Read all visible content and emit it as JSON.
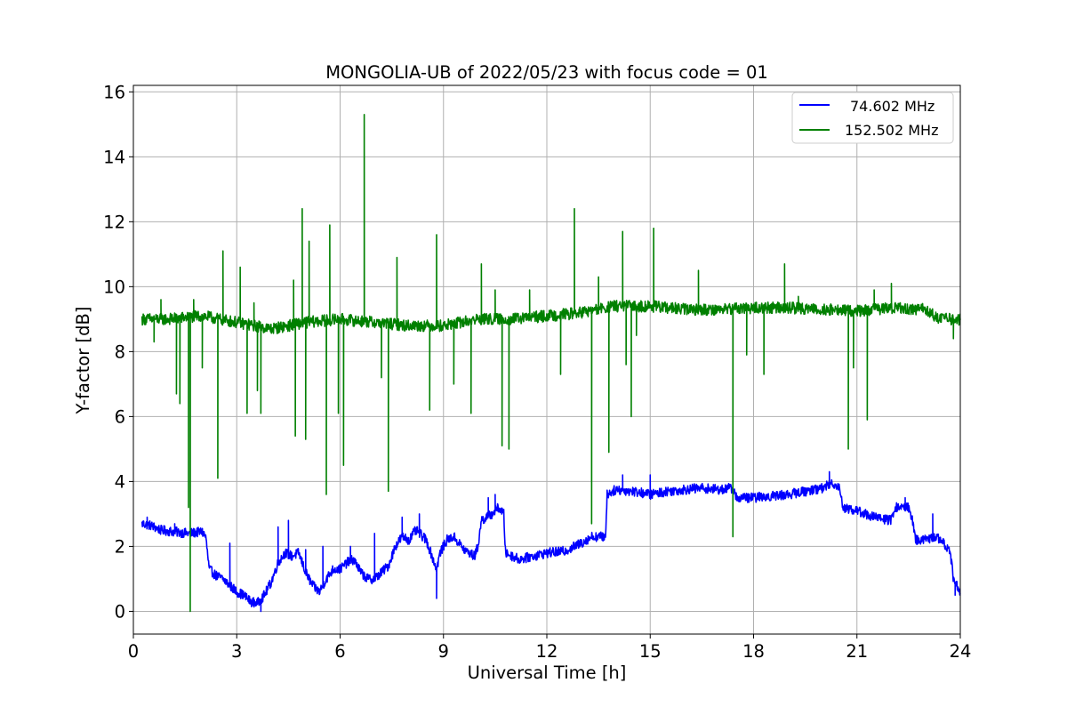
{
  "chart_data": {
    "type": "line",
    "title": "MONGOLIA-UB of 2022/05/23 with focus code = 01",
    "xlabel": "Universal Time [h]",
    "ylabel": "Y-factor [dB]",
    "xlim": [
      0,
      24
    ],
    "ylim": [
      -0.7,
      16.2
    ],
    "xticks": [
      0,
      3,
      6,
      9,
      12,
      15,
      18,
      21,
      24
    ],
    "xtick_labels": [
      "0",
      "3",
      "6",
      "9",
      "12",
      "15",
      "18",
      "21",
      "24"
    ],
    "yticks": [
      0,
      2,
      4,
      6,
      8,
      10,
      12,
      14,
      16
    ],
    "ytick_labels": [
      "0",
      "2",
      "4",
      "6",
      "8",
      "10",
      "12",
      "14",
      "16"
    ],
    "grid": true,
    "legend_position": "top-right",
    "series": [
      {
        "name": "74.602 MHz",
        "color": "#0000ff",
        "baseline": [
          [
            0.25,
            2.7
          ],
          [
            0.5,
            2.65
          ],
          [
            0.8,
            2.5
          ],
          [
            1.2,
            2.45
          ],
          [
            1.6,
            2.4
          ],
          [
            2.0,
            2.45
          ],
          [
            2.1,
            2.3
          ],
          [
            2.2,
            1.3
          ],
          [
            2.4,
            1.1
          ],
          [
            2.6,
            1.0
          ],
          [
            2.8,
            0.8
          ],
          [
            3.0,
            0.6
          ],
          [
            3.2,
            0.5
          ],
          [
            3.4,
            0.3
          ],
          [
            3.6,
            0.25
          ],
          [
            3.8,
            0.5
          ],
          [
            4.0,
            0.9
          ],
          [
            4.2,
            1.5
          ],
          [
            4.4,
            1.8
          ],
          [
            4.6,
            1.7
          ],
          [
            4.8,
            1.8
          ],
          [
            5.0,
            1.2
          ],
          [
            5.2,
            0.8
          ],
          [
            5.4,
            0.6
          ],
          [
            5.6,
            1.0
          ],
          [
            5.8,
            1.3
          ],
          [
            6.0,
            1.3
          ],
          [
            6.2,
            1.5
          ],
          [
            6.4,
            1.6
          ],
          [
            6.6,
            1.2
          ],
          [
            6.8,
            1.0
          ],
          [
            7.0,
            1.0
          ],
          [
            7.2,
            1.2
          ],
          [
            7.4,
            1.4
          ],
          [
            7.6,
            2.0
          ],
          [
            7.8,
            2.3
          ],
          [
            8.0,
            2.2
          ],
          [
            8.2,
            2.5
          ],
          [
            8.5,
            2.2
          ],
          [
            8.8,
            1.3
          ],
          [
            8.9,
            1.8
          ],
          [
            9.1,
            2.2
          ],
          [
            9.3,
            2.3
          ],
          [
            9.6,
            1.9
          ],
          [
            9.9,
            1.7
          ],
          [
            10.0,
            2.0
          ],
          [
            10.1,
            2.8
          ],
          [
            10.4,
            3.0
          ],
          [
            10.6,
            3.2
          ],
          [
            10.75,
            3.0
          ],
          [
            10.8,
            1.8
          ],
          [
            11.2,
            1.6
          ],
          [
            11.6,
            1.7
          ],
          [
            12.0,
            1.8
          ],
          [
            12.5,
            1.85
          ],
          [
            13.0,
            2.1
          ],
          [
            13.3,
            2.3
          ],
          [
            13.7,
            2.3
          ],
          [
            13.75,
            3.6
          ],
          [
            14.0,
            3.75
          ],
          [
            14.5,
            3.7
          ],
          [
            15.0,
            3.6
          ],
          [
            15.5,
            3.7
          ],
          [
            16.0,
            3.75
          ],
          [
            16.5,
            3.8
          ],
          [
            17.0,
            3.75
          ],
          [
            17.4,
            3.8
          ],
          [
            17.5,
            3.5
          ],
          [
            18.0,
            3.5
          ],
          [
            18.5,
            3.55
          ],
          [
            19.0,
            3.6
          ],
          [
            19.5,
            3.7
          ],
          [
            20.0,
            3.8
          ],
          [
            20.3,
            3.95
          ],
          [
            20.5,
            3.8
          ],
          [
            20.6,
            3.2
          ],
          [
            21.0,
            3.1
          ],
          [
            21.5,
            2.9
          ],
          [
            22.0,
            2.8
          ],
          [
            22.1,
            3.2
          ],
          [
            22.5,
            3.2
          ],
          [
            22.6,
            2.9
          ],
          [
            22.7,
            2.2
          ],
          [
            23.0,
            2.2
          ],
          [
            23.3,
            2.3
          ],
          [
            23.5,
            2.1
          ],
          [
            23.7,
            1.9
          ],
          [
            23.8,
            1.0
          ],
          [
            24.0,
            0.6
          ]
        ],
        "noise_amplitude": 0.15,
        "spikes": [
          [
            0.4,
            2.9
          ],
          [
            1.2,
            2.7
          ],
          [
            2.8,
            2.1
          ],
          [
            3.7,
            0.0
          ],
          [
            4.2,
            2.6
          ],
          [
            4.5,
            2.8
          ],
          [
            5.0,
            1.9
          ],
          [
            5.5,
            2.0
          ],
          [
            6.3,
            2.0
          ],
          [
            7.0,
            2.4
          ],
          [
            7.8,
            2.9
          ],
          [
            8.3,
            3.0
          ],
          [
            8.8,
            0.4
          ],
          [
            10.3,
            3.5
          ],
          [
            10.5,
            3.6
          ],
          [
            14.2,
            4.2
          ],
          [
            15.0,
            4.2
          ],
          [
            20.2,
            4.3
          ],
          [
            22.4,
            3.5
          ],
          [
            23.2,
            3.0
          ],
          [
            23.85,
            0.5
          ]
        ]
      },
      {
        "name": "152.502 MHz",
        "color": "#008000",
        "baseline": [
          [
            0.25,
            9.0
          ],
          [
            1.0,
            9.0
          ],
          [
            2.0,
            9.1
          ],
          [
            3.0,
            8.9
          ],
          [
            4.0,
            8.7
          ],
          [
            5.0,
            8.9
          ],
          [
            6.0,
            9.0
          ],
          [
            7.0,
            8.9
          ],
          [
            8.0,
            8.8
          ],
          [
            9.0,
            8.8
          ],
          [
            10.0,
            9.0
          ],
          [
            11.0,
            9.0
          ],
          [
            12.0,
            9.1
          ],
          [
            13.0,
            9.2
          ],
          [
            14.0,
            9.4
          ],
          [
            15.0,
            9.4
          ],
          [
            16.0,
            9.3
          ],
          [
            17.0,
            9.3
          ],
          [
            18.0,
            9.35
          ],
          [
            19.0,
            9.35
          ],
          [
            20.0,
            9.3
          ],
          [
            21.0,
            9.25
          ],
          [
            22.0,
            9.35
          ],
          [
            23.0,
            9.3
          ],
          [
            23.4,
            9.0
          ],
          [
            24.0,
            9.0
          ]
        ],
        "noise_amplitude": 0.18,
        "spikes": [
          [
            0.6,
            8.3
          ],
          [
            0.8,
            9.6
          ],
          [
            1.25,
            6.7
          ],
          [
            1.35,
            6.4
          ],
          [
            1.6,
            3.2
          ],
          [
            1.65,
            0.0
          ],
          [
            1.75,
            9.6
          ],
          [
            2.0,
            7.5
          ],
          [
            2.45,
            4.1
          ],
          [
            2.6,
            11.1
          ],
          [
            3.1,
            10.6
          ],
          [
            3.3,
            6.1
          ],
          [
            3.5,
            9.5
          ],
          [
            3.6,
            6.8
          ],
          [
            3.7,
            6.1
          ],
          [
            4.65,
            10.2
          ],
          [
            4.7,
            5.4
          ],
          [
            4.9,
            12.4
          ],
          [
            5.0,
            5.3
          ],
          [
            5.1,
            11.4
          ],
          [
            5.6,
            3.6
          ],
          [
            5.7,
            11.9
          ],
          [
            5.95,
            6.1
          ],
          [
            6.1,
            4.5
          ],
          [
            6.7,
            15.3
          ],
          [
            7.2,
            7.2
          ],
          [
            7.4,
            3.7
          ],
          [
            7.65,
            10.9
          ],
          [
            8.6,
            6.2
          ],
          [
            8.8,
            11.6
          ],
          [
            9.3,
            7.0
          ],
          [
            9.8,
            6.1
          ],
          [
            10.1,
            10.7
          ],
          [
            10.5,
            9.9
          ],
          [
            10.7,
            5.1
          ],
          [
            10.9,
            5.0
          ],
          [
            11.5,
            9.9
          ],
          [
            12.4,
            7.3
          ],
          [
            12.8,
            12.4
          ],
          [
            13.3,
            2.7
          ],
          [
            13.5,
            10.3
          ],
          [
            13.8,
            4.9
          ],
          [
            14.2,
            11.7
          ],
          [
            14.3,
            7.6
          ],
          [
            14.45,
            6.0
          ],
          [
            14.6,
            8.5
          ],
          [
            15.1,
            11.8
          ],
          [
            16.4,
            10.5
          ],
          [
            17.4,
            2.3
          ],
          [
            17.5,
            9.5
          ],
          [
            17.8,
            7.9
          ],
          [
            18.3,
            7.3
          ],
          [
            18.9,
            10.7
          ],
          [
            19.3,
            9.7
          ],
          [
            20.75,
            5.0
          ],
          [
            20.9,
            7.5
          ],
          [
            21.3,
            5.9
          ],
          [
            21.5,
            9.9
          ],
          [
            22.0,
            10.1
          ],
          [
            23.8,
            8.4
          ]
        ]
      }
    ]
  }
}
